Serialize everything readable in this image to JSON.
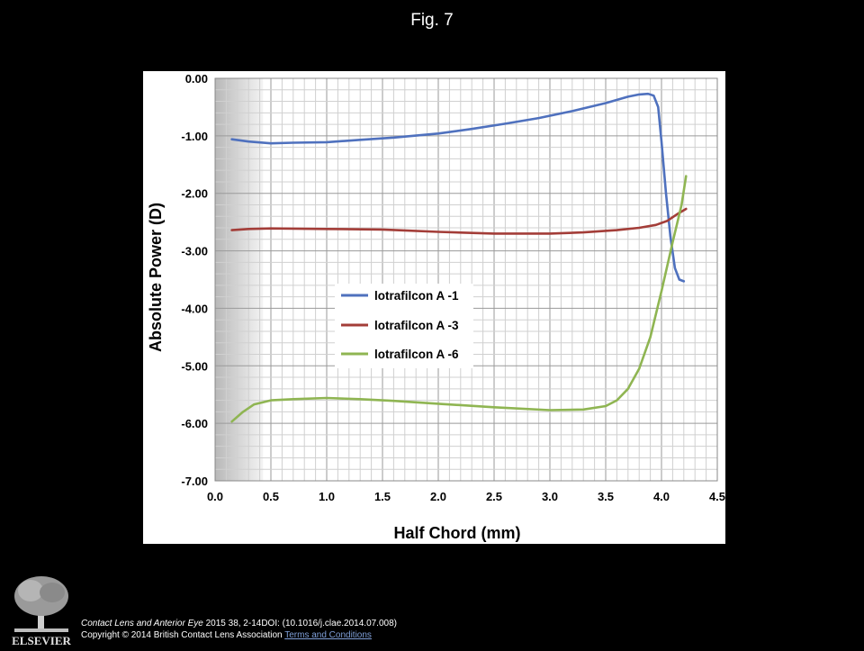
{
  "slide": {
    "title": "Fig. 7"
  },
  "colors": {
    "background": "#000000",
    "series_1": "#4f71be",
    "series_2": "#a33d38",
    "series_3": "#8fb552"
  },
  "chart_data": {
    "type": "line",
    "title": "",
    "xlabel": "Half Chord (mm)",
    "ylabel": "Absolute Power (D)",
    "xlim": [
      0.0,
      4.5
    ],
    "ylim": [
      -7.0,
      0.0
    ],
    "x_ticks": [
      "0.0",
      "0.5",
      "1.0",
      "1.5",
      "2.0",
      "2.5",
      "3.0",
      "3.5",
      "4.0",
      "4.5"
    ],
    "y_ticks": [
      "0.00",
      "-1.00",
      "-2.00",
      "-3.00",
      "-4.00",
      "-5.00",
      "-6.00",
      "-7.00"
    ],
    "grid": true,
    "legend_position": "center-left",
    "shaded_region": [
      0.0,
      0.43
    ],
    "series": [
      {
        "name": "lotrafilcon A -1",
        "color": "#4f71be",
        "points": [
          [
            0.15,
            -1.06
          ],
          [
            0.3,
            -1.1
          ],
          [
            0.5,
            -1.13
          ],
          [
            0.7,
            -1.12
          ],
          [
            1.0,
            -1.11
          ],
          [
            1.3,
            -1.07
          ],
          [
            1.6,
            -1.03
          ],
          [
            2.0,
            -0.96
          ],
          [
            2.3,
            -0.88
          ],
          [
            2.6,
            -0.79
          ],
          [
            2.9,
            -0.69
          ],
          [
            3.2,
            -0.57
          ],
          [
            3.5,
            -0.43
          ],
          [
            3.7,
            -0.32
          ],
          [
            3.8,
            -0.28
          ],
          [
            3.88,
            -0.27
          ],
          [
            3.93,
            -0.3
          ],
          [
            3.97,
            -0.5
          ],
          [
            4.0,
            -1.1
          ],
          [
            4.04,
            -2.0
          ],
          [
            4.08,
            -2.75
          ],
          [
            4.12,
            -3.3
          ],
          [
            4.16,
            -3.5
          ],
          [
            4.2,
            -3.53
          ]
        ]
      },
      {
        "name": "lotrafilcon A -3",
        "color": "#a33d38",
        "points": [
          [
            0.15,
            -2.64
          ],
          [
            0.3,
            -2.62
          ],
          [
            0.5,
            -2.61
          ],
          [
            1.0,
            -2.62
          ],
          [
            1.5,
            -2.63
          ],
          [
            2.0,
            -2.67
          ],
          [
            2.5,
            -2.7
          ],
          [
            3.0,
            -2.7
          ],
          [
            3.3,
            -2.68
          ],
          [
            3.6,
            -2.64
          ],
          [
            3.8,
            -2.6
          ],
          [
            3.95,
            -2.55
          ],
          [
            4.05,
            -2.48
          ],
          [
            4.15,
            -2.35
          ],
          [
            4.22,
            -2.27
          ]
        ]
      },
      {
        "name": "lotrafilcon A -6",
        "color": "#8fb552",
        "points": [
          [
            0.15,
            -5.97
          ],
          [
            0.25,
            -5.8
          ],
          [
            0.35,
            -5.67
          ],
          [
            0.5,
            -5.6
          ],
          [
            0.7,
            -5.58
          ],
          [
            1.0,
            -5.56
          ],
          [
            1.3,
            -5.58
          ],
          [
            1.6,
            -5.61
          ],
          [
            2.0,
            -5.66
          ],
          [
            2.5,
            -5.72
          ],
          [
            3.0,
            -5.77
          ],
          [
            3.3,
            -5.76
          ],
          [
            3.5,
            -5.7
          ],
          [
            3.6,
            -5.6
          ],
          [
            3.7,
            -5.4
          ],
          [
            3.8,
            -5.05
          ],
          [
            3.9,
            -4.5
          ],
          [
            4.0,
            -3.7
          ],
          [
            4.1,
            -2.85
          ],
          [
            4.18,
            -2.2
          ],
          [
            4.22,
            -1.7
          ]
        ]
      }
    ]
  },
  "footer": {
    "publisher": "ELSEVIER",
    "journal": "Contact Lens and Anterior Eye",
    "citation_rest": " 2015 38, 2-14DOI: (10.1016/j.clae.2014.07.008)",
    "copyright": "Copyright © 2014 British Contact Lens Association",
    "terms_link": "Terms and Conditions"
  }
}
